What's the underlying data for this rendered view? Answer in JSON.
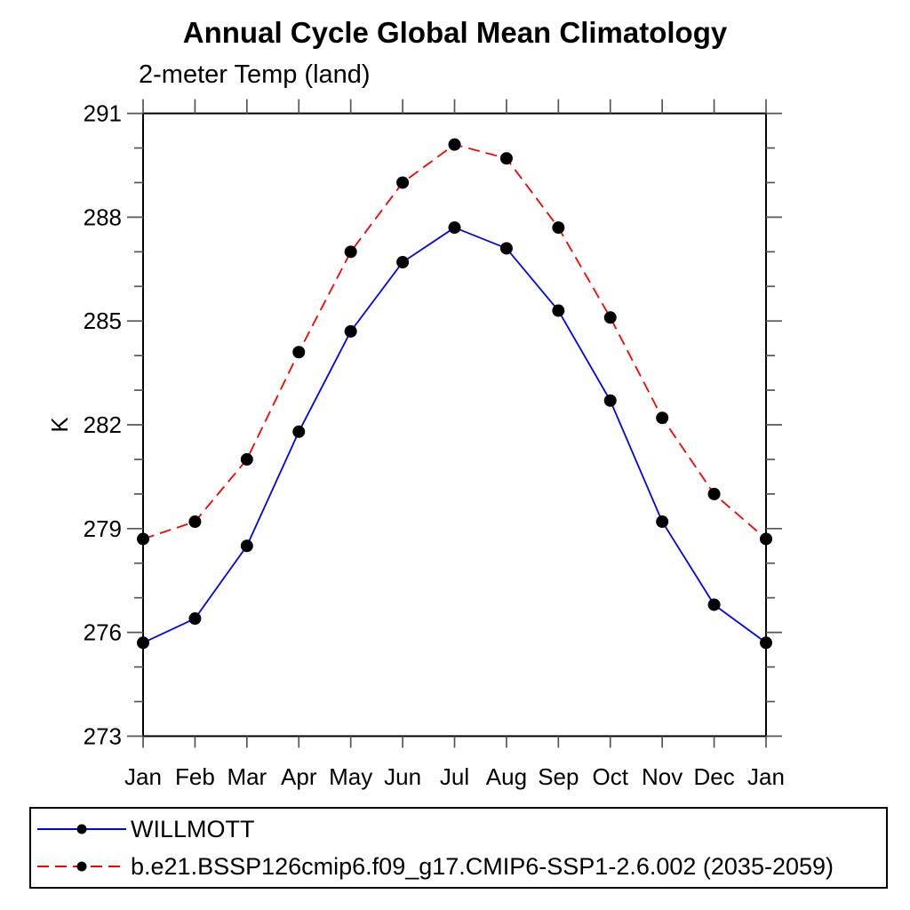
{
  "page": {
    "background": "#ffffff"
  },
  "chart_data": {
    "type": "line",
    "title": "Annual Cycle Global Mean Climatology",
    "subtitle": "2-meter Temp (land)",
    "ylabel": "K",
    "xlabel": "",
    "categories": [
      "Jan",
      "Feb",
      "Mar",
      "Apr",
      "May",
      "Jun",
      "Jul",
      "Aug",
      "Sep",
      "Oct",
      "Nov",
      "Dec",
      "Jan"
    ],
    "ylim": [
      273,
      291
    ],
    "y_major_ticks": [
      273,
      276,
      279,
      282,
      285,
      288,
      291
    ],
    "y_minor_step": 1,
    "grid": false,
    "legend_position": "bottom",
    "axis_color": "#000000",
    "tick_color": "#555555",
    "marker_color": "#000000",
    "series": [
      {
        "name": "WILLMOTT",
        "line_color": "#0000ff",
        "line_style": "solid",
        "values": [
          275.7,
          276.4,
          278.5,
          281.8,
          284.7,
          286.7,
          287.7,
          287.1,
          285.3,
          282.7,
          279.2,
          276.8,
          275.7
        ]
      },
      {
        "name": "b.e21.BSSP126cmip6.f09_g17.CMIP6-SSP1-2.6.002 (2035-2059)",
        "line_color": "#ff0000",
        "line_style": "dashed",
        "values": [
          278.7,
          279.2,
          281.0,
          284.1,
          287.0,
          289.0,
          290.1,
          289.7,
          287.7,
          285.1,
          282.2,
          280.0,
          278.7
        ]
      }
    ]
  }
}
